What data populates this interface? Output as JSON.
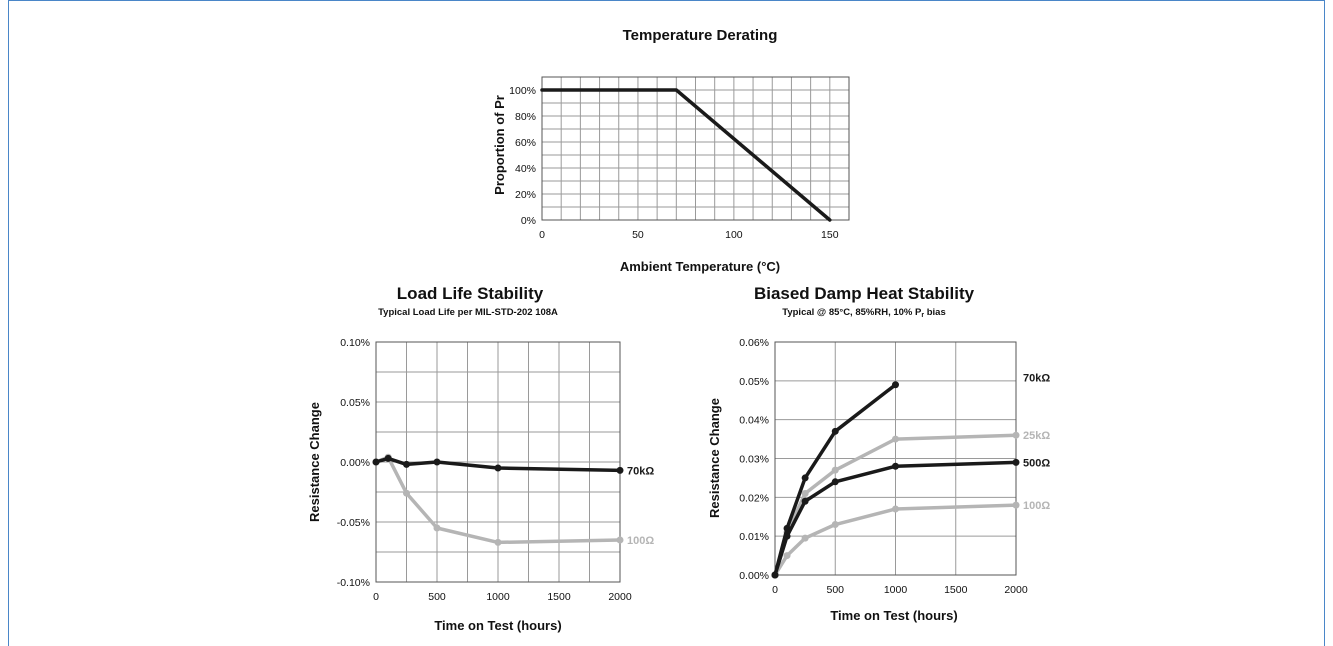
{
  "colors": {
    "frame": "#4a86c8",
    "dark": "#1a1a1a",
    "light": "#b5b5b5",
    "grid": "#9a9a9a"
  },
  "chart_data": [
    {
      "id": "derating",
      "type": "line",
      "title": "Temperature Derating",
      "subtitle": "",
      "xlabel": "Ambient Temperature (°C)",
      "ylabel": "Proportion of Pr",
      "xlim": [
        0,
        160
      ],
      "ylim": [
        0,
        1.1
      ],
      "xticks": [
        0,
        50,
        100,
        150
      ],
      "yticks": [
        0,
        0.2,
        0.4,
        0.6,
        0.8,
        1.0
      ],
      "yformat": "pct0",
      "xgrid_step": 10,
      "ygrid_step": 0.1,
      "series": [
        {
          "name": "",
          "color": "dark",
          "markers": false,
          "x": [
            0,
            70,
            150
          ],
          "y": [
            1.0,
            1.0,
            0
          ]
        }
      ]
    },
    {
      "id": "loadlife",
      "type": "line",
      "title": "Load Life Stability",
      "subtitle": "Typical Load Life per MIL-STD-202 108A",
      "xlabel": "Time on Test (hours)",
      "ylabel": "Resistance Change",
      "xlim": [
        0,
        2000
      ],
      "ylim": [
        -0.1,
        0.1
      ],
      "xticks": [
        0,
        500,
        1000,
        1500,
        2000
      ],
      "yticks": [
        -0.1,
        -0.05,
        0.0,
        0.05,
        0.1
      ],
      "yformat": "pct2",
      "xgrid_step": 250,
      "ygrid_step": 0.025,
      "series": [
        {
          "name": "100Ω",
          "color": "light",
          "markers": true,
          "x": [
            0,
            100,
            250,
            500,
            1000,
            2000
          ],
          "y": [
            0.0,
            0.004,
            -0.026,
            -0.055,
            -0.067,
            -0.065
          ]
        },
        {
          "name": "70kΩ",
          "color": "dark",
          "markers": true,
          "x": [
            0,
            100,
            250,
            500,
            1000,
            2000
          ],
          "y": [
            0.0,
            0.003,
            -0.002,
            0.0,
            -0.005,
            -0.007
          ]
        }
      ]
    },
    {
      "id": "dampheat",
      "type": "line",
      "title": "Biased Damp Heat Stability",
      "subtitle": "Typical @ 85°C, 85%RH, 10% P",
      "subtitle_sub": "r",
      "subtitle_tail": " bias",
      "xlabel": "Time on Test (hours)",
      "ylabel": "Resistance Change",
      "xlim": [
        0,
        2000
      ],
      "ylim": [
        0,
        0.06
      ],
      "xticks": [
        0,
        500,
        1000,
        1500,
        2000
      ],
      "yticks": [
        0,
        0.01,
        0.02,
        0.03,
        0.04,
        0.05,
        0.06
      ],
      "yformat": "pct2",
      "xgrid_step": 500,
      "ygrid_step": 0.01,
      "series": [
        {
          "name": "100Ω",
          "color": "light",
          "markers": true,
          "x": [
            0,
            100,
            250,
            500,
            1000,
            2000
          ],
          "y": [
            0,
            0.005,
            0.0095,
            0.013,
            0.017,
            0.018
          ]
        },
        {
          "name": "25kΩ",
          "color": "light",
          "markers": true,
          "x": [
            0,
            100,
            250,
            500,
            1000,
            2000
          ],
          "y": [
            0,
            0.011,
            0.021,
            0.027,
            0.035,
            0.036
          ]
        },
        {
          "name": "500Ω",
          "color": "dark",
          "markers": true,
          "x": [
            0,
            100,
            250,
            500,
            1000,
            2000
          ],
          "y": [
            0,
            0.01,
            0.019,
            0.024,
            0.028,
            0.029
          ]
        },
        {
          "name": "70kΩ",
          "color": "dark",
          "markers": true,
          "x": [
            0,
            100,
            250,
            500,
            1000
          ],
          "y": [
            0,
            0.012,
            0.025,
            0.037,
            0.049
          ]
        }
      ]
    }
  ]
}
